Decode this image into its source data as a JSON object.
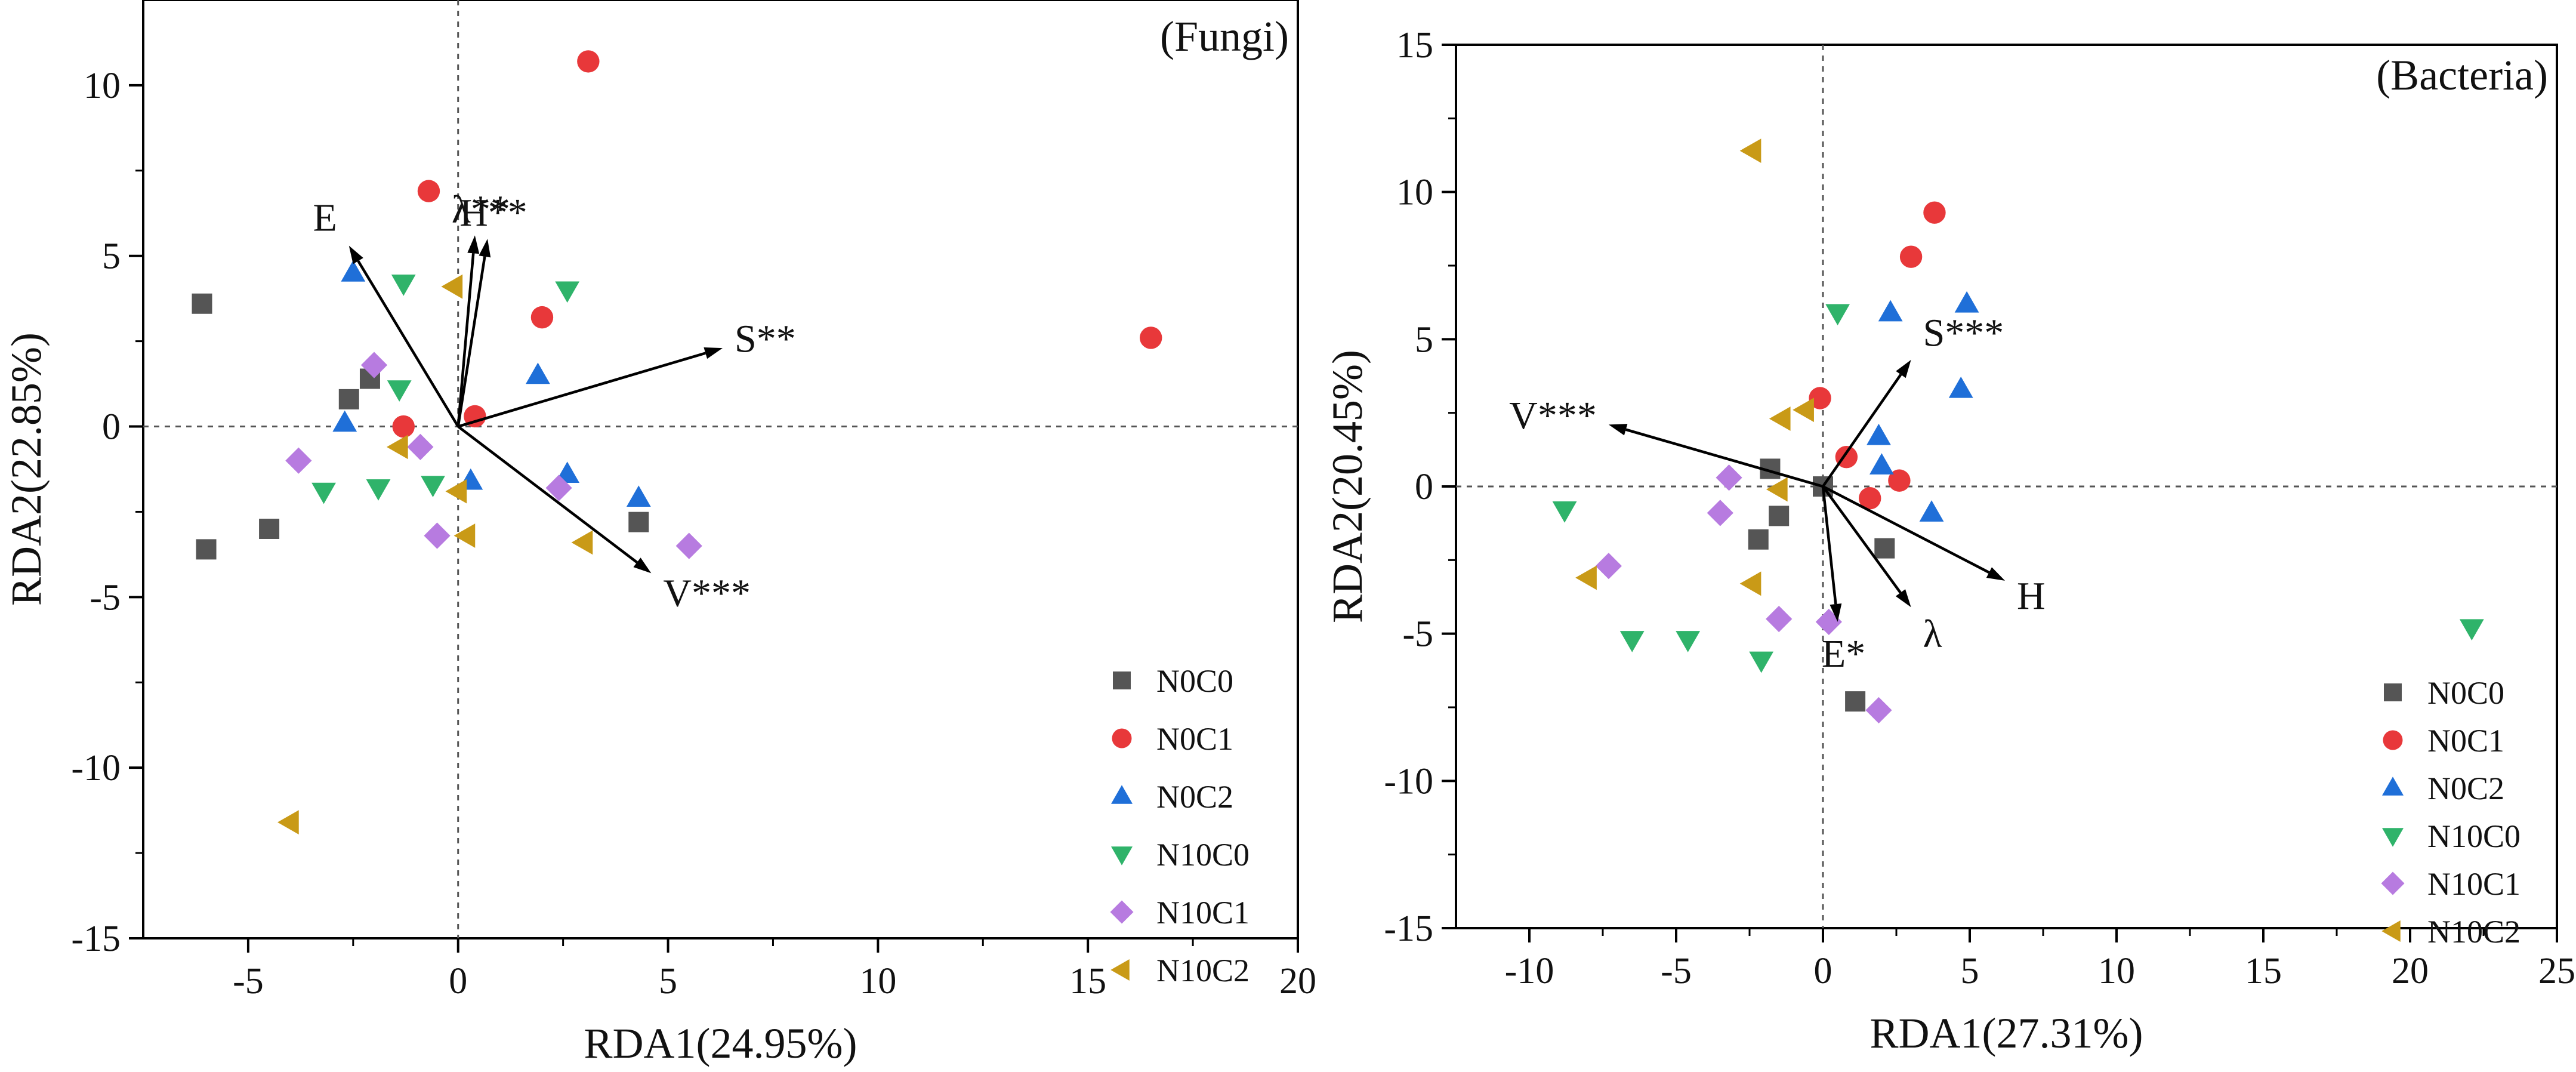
{
  "colors": {
    "N0C0": "#555555",
    "N0C1": "#e8383a",
    "N0C2": "#1f6fd8",
    "N10C0": "#2fb36a",
    "N10C1": "#b77be0",
    "N10C2": "#c99a17",
    "axis": "#000000",
    "zero_line": "#555555"
  },
  "chart_data": [
    {
      "type": "scatter",
      "title": "(Fungi)",
      "xlabel": "RDA1(24.95%)",
      "ylabel": "RDA2(22.85%)",
      "xlim": [
        -7.5,
        20
      ],
      "ylim": [
        -15,
        12.5
      ],
      "xticks": [
        -5,
        0,
        5,
        10,
        15,
        20
      ],
      "yticks": [
        -15,
        -10,
        -5,
        0,
        5,
        10
      ],
      "zero_lines": true,
      "legend_position": "bottom-right",
      "series": [
        {
          "name": "N0C0",
          "marker": "square",
          "points": [
            [
              -6.1,
              3.6
            ],
            [
              -6.0,
              -3.6
            ],
            [
              -4.5,
              -3.0
            ],
            [
              -2.6,
              0.8
            ],
            [
              -2.1,
              1.4
            ],
            [
              4.3,
              -2.8
            ]
          ]
        },
        {
          "name": "N0C1",
          "marker": "circle",
          "points": [
            [
              -0.7,
              6.9
            ],
            [
              3.1,
              10.7
            ],
            [
              2.0,
              3.2
            ],
            [
              0.4,
              0.3
            ],
            [
              -1.3,
              0.0
            ],
            [
              16.5,
              2.6
            ]
          ]
        },
        {
          "name": "N0C2",
          "marker": "triangle-up",
          "points": [
            [
              -2.5,
              4.5
            ],
            [
              -2.7,
              0.1
            ],
            [
              1.9,
              1.5
            ],
            [
              0.3,
              -1.6
            ],
            [
              2.6,
              -1.4
            ],
            [
              4.3,
              -2.1
            ]
          ]
        },
        {
          "name": "N10C0",
          "marker": "triangle-down",
          "points": [
            [
              -1.3,
              4.2
            ],
            [
              2.6,
              4.0
            ],
            [
              -1.4,
              1.1
            ],
            [
              -3.2,
              -1.9
            ],
            [
              -1.9,
              -1.8
            ],
            [
              -0.6,
              -1.7
            ]
          ]
        },
        {
          "name": "N10C1",
          "marker": "diamond",
          "points": [
            [
              -2.0,
              1.8
            ],
            [
              -3.8,
              -1.0
            ],
            [
              -0.9,
              -0.6
            ],
            [
              -0.5,
              -3.2
            ],
            [
              2.4,
              -1.8
            ],
            [
              5.5,
              -3.5
            ]
          ]
        },
        {
          "name": "N10C2",
          "marker": "triangle-left",
          "points": [
            [
              -0.1,
              4.1
            ],
            [
              -1.4,
              -0.6
            ],
            [
              0.0,
              -1.9
            ],
            [
              0.2,
              -3.2
            ],
            [
              3.0,
              -3.4
            ],
            [
              -4.0,
              -11.6
            ]
          ]
        }
      ],
      "arrows": [
        {
          "label": "E",
          "x": -2.6,
          "y": 5.3
        },
        {
          "label": "λ**",
          "x": 0.4,
          "y": 5.6
        },
        {
          "label": "H**",
          "x": 0.7,
          "y": 5.5
        },
        {
          "label": "S**",
          "x": 6.3,
          "y": 2.3
        },
        {
          "label": "V***",
          "x": 4.6,
          "y": -4.3
        }
      ]
    },
    {
      "type": "scatter",
      "title": "(Bacteria)",
      "xlabel": "RDA1(27.31%)",
      "ylabel": "RDA2(20.45%)",
      "xlim": [
        -12.5,
        25
      ],
      "ylim": [
        -15,
        15
      ],
      "xticks": [
        -10,
        -5,
        0,
        5,
        10,
        15,
        20,
        25
      ],
      "yticks": [
        -15,
        -10,
        -5,
        0,
        5,
        10,
        15
      ],
      "zero_lines": true,
      "legend_position": "bottom-right",
      "series": [
        {
          "name": "N0C0",
          "marker": "square",
          "points": [
            [
              -1.8,
              0.6
            ],
            [
              -2.2,
              -1.8
            ],
            [
              -1.5,
              -1.0
            ],
            [
              0.0,
              0.0
            ],
            [
              2.1,
              -2.1
            ],
            [
              1.1,
              -7.3
            ]
          ]
        },
        {
          "name": "N0C1",
          "marker": "circle",
          "points": [
            [
              3.8,
              9.3
            ],
            [
              3.0,
              7.8
            ],
            [
              -0.1,
              3.0
            ],
            [
              0.8,
              1.0
            ],
            [
              2.6,
              0.2
            ],
            [
              1.6,
              -0.4
            ]
          ]
        },
        {
          "name": "N0C2",
          "marker": "triangle-up",
          "points": [
            [
              2.3,
              5.9
            ],
            [
              4.9,
              6.2
            ],
            [
              4.7,
              3.3
            ],
            [
              1.9,
              1.7
            ],
            [
              2.0,
              0.7
            ],
            [
              3.7,
              -0.9
            ]
          ]
        },
        {
          "name": "N10C0",
          "marker": "triangle-down",
          "points": [
            [
              0.5,
              5.9
            ],
            [
              -8.8,
              -0.8
            ],
            [
              -6.5,
              -5.2
            ],
            [
              -4.6,
              -5.2
            ],
            [
              -2.1,
              -5.9
            ],
            [
              22.1,
              -4.8
            ]
          ]
        },
        {
          "name": "N10C1",
          "marker": "diamond",
          "points": [
            [
              -3.2,
              0.3
            ],
            [
              -3.5,
              -0.9
            ],
            [
              -7.3,
              -2.7
            ],
            [
              -1.5,
              -4.5
            ],
            [
              0.2,
              -4.6
            ],
            [
              1.9,
              -7.6
            ]
          ]
        },
        {
          "name": "N10C2",
          "marker": "triangle-left",
          "points": [
            [
              -2.4,
              11.4
            ],
            [
              -0.6,
              2.6
            ],
            [
              -1.4,
              2.3
            ],
            [
              -1.5,
              -0.1
            ],
            [
              -2.4,
              -3.3
            ],
            [
              -8.0,
              -3.1
            ]
          ]
        }
      ],
      "arrows": [
        {
          "label": "S***",
          "x": 3.0,
          "y": 4.3
        },
        {
          "label": "V***",
          "x": -7.3,
          "y": 2.1
        },
        {
          "label": "H",
          "x": 6.2,
          "y": -3.2
        },
        {
          "label": "λ",
          "x": 3.0,
          "y": -4.1
        },
        {
          "label": "E*",
          "x": 0.5,
          "y": -4.6
        }
      ]
    }
  ]
}
